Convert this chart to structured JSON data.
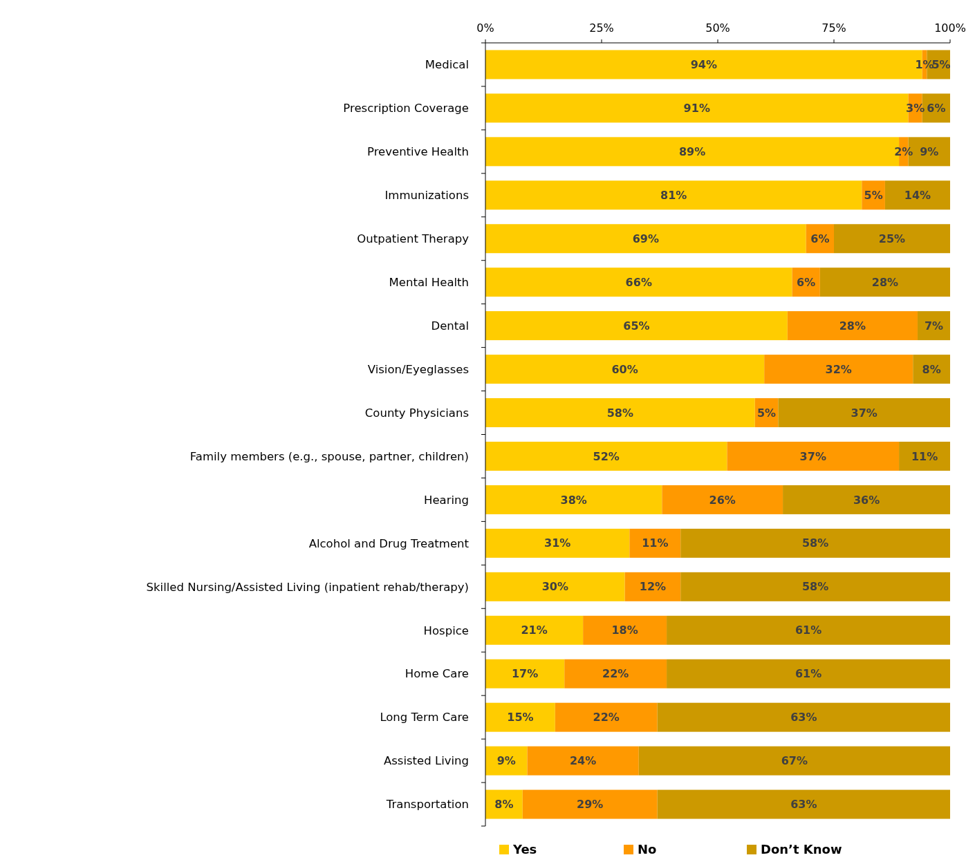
{
  "chart_data": {
    "type": "bar",
    "orientation": "horizontal",
    "stacked": true,
    "legend": "bottom",
    "grid": false,
    "categories": [
      "Medical",
      "Prescription Coverage",
      "Preventive Health",
      "Immunizations",
      "Outpatient Therapy",
      "Mental Health",
      "Dental",
      "Vision/Eyeglasses",
      "County Physicians",
      "Family members (e.g., spouse, partner, children)",
      "Hearing",
      "Alcohol and Drug Treatment",
      "Skilled Nursing/Assisted Living (inpatient rehab/therapy)",
      "Hospice",
      "Home Care",
      "Long Term Care",
      "Assisted Living",
      "Transportation"
    ],
    "series": [
      {
        "name": "Yes",
        "color": "#ffcc00",
        "values": [
          94,
          91,
          89,
          81,
          69,
          66,
          65,
          60,
          58,
          52,
          38,
          31,
          30,
          21,
          17,
          15,
          9,
          8
        ],
        "value_labels": [
          "94%",
          "91%",
          "89%",
          "81%",
          "69%",
          "66%",
          "65%",
          "60%",
          "58%",
          "52%",
          "38%",
          "31%",
          "30%",
          "21%",
          "17%",
          "15%",
          "9%",
          "8%"
        ]
      },
      {
        "name": "No",
        "color": "#ff9900",
        "values": [
          1,
          3,
          2,
          5,
          6,
          6,
          28,
          32,
          5,
          37,
          26,
          11,
          12,
          18,
          22,
          22,
          24,
          29
        ],
        "value_labels": [
          "1%",
          "3%",
          "2%",
          "5%",
          "6%",
          "6%",
          "28%",
          "32%",
          "5%",
          "37%",
          "26%",
          "11%",
          "12%",
          "18%",
          "22%",
          "22%",
          "24%",
          "29%"
        ]
      },
      {
        "name": "Don’t Know",
        "color": "#cc9900",
        "values": [
          5,
          6,
          9,
          14,
          25,
          28,
          7,
          8,
          37,
          11,
          36,
          58,
          58,
          61,
          61,
          63,
          67,
          63
        ],
        "value_labels": [
          "5%",
          "6%",
          "9%",
          "14%",
          "25%",
          "28%",
          "7%",
          "8%",
          "37%",
          "11%",
          "36%",
          "58%",
          "58%",
          "61%",
          "61%",
          "63%",
          "67%",
          "63%"
        ]
      }
    ],
    "xlim": [
      0,
      100
    ],
    "xticks": [
      {
        "value": 0,
        "label": "0%"
      },
      {
        "value": 25,
        "label": "25%"
      },
      {
        "value": 50,
        "label": "50%"
      },
      {
        "value": 75,
        "label": "75%"
      },
      {
        "value": 100,
        "label": "100%"
      }
    ]
  }
}
